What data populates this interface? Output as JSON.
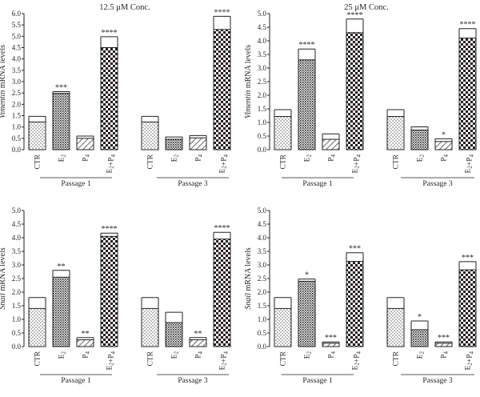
{
  "chart_data": [
    {
      "type": "bar",
      "title": "12.5 μM Conc.",
      "ylabel_italic": "Vimentin",
      "ylabel_rest": " mRNA levels",
      "ylim": [
        0,
        6.0
      ],
      "yticks": [
        "0.0",
        "0.5",
        "1.0",
        "1.5",
        "2.0",
        "2.5",
        "3.0",
        "3.5",
        "4.0",
        "4.5",
        "5.0",
        "5.5",
        "6.0"
      ],
      "groups": [
        {
          "label": "Passage 1",
          "bars": [
            {
              "category": "CTR",
              "pattern": "dots",
              "value": 1.22,
              "error": 0.25,
              "sig": ""
            },
            {
              "category": "E2",
              "pattern": "dense",
              "value": 2.48,
              "error": 0.08,
              "sig": "***"
            },
            {
              "category": "P4",
              "pattern": "hatch",
              "value": 0.5,
              "error": 0.1,
              "sig": ""
            },
            {
              "category": "E2+P4",
              "pattern": "checker",
              "value": 4.5,
              "error": 0.48,
              "sig": "****"
            }
          ]
        },
        {
          "label": "Passage 3",
          "bars": [
            {
              "category": "CTR",
              "pattern": "dots",
              "value": 1.22,
              "error": 0.25,
              "sig": ""
            },
            {
              "category": "E2",
              "pattern": "dense",
              "value": 0.46,
              "error": 0.1,
              "sig": ""
            },
            {
              "category": "P4",
              "pattern": "hatch",
              "value": 0.52,
              "error": 0.1,
              "sig": ""
            },
            {
              "category": "E2+P4",
              "pattern": "checker",
              "value": 5.3,
              "error": 0.58,
              "sig": "****"
            }
          ]
        }
      ]
    },
    {
      "type": "bar",
      "title": "25 μM Conc.",
      "ylabel_italic": "Vimentin",
      "ylabel_rest": " mRNA levels",
      "ylim": [
        0,
        5.0
      ],
      "yticks": [
        "0.0",
        "0.5",
        "1.0",
        "1.5",
        "2.0",
        "2.5",
        "3.0",
        "3.5",
        "4.0",
        "4.5",
        "5.0"
      ],
      "groups": [
        {
          "label": "Passage 1",
          "bars": [
            {
              "category": "CTR",
              "pattern": "dots",
              "value": 1.22,
              "error": 0.25,
              "sig": ""
            },
            {
              "category": "E2",
              "pattern": "dense",
              "value": 3.3,
              "error": 0.4,
              "sig": "****"
            },
            {
              "category": "P4",
              "pattern": "hatch",
              "value": 0.38,
              "error": 0.2,
              "sig": ""
            },
            {
              "category": "E2+P4",
              "pattern": "checker",
              "value": 4.3,
              "error": 0.5,
              "sig": "****"
            }
          ]
        },
        {
          "label": "Passage 3",
          "bars": [
            {
              "category": "CTR",
              "pattern": "dots",
              "value": 1.22,
              "error": 0.25,
              "sig": ""
            },
            {
              "category": "E2",
              "pattern": "dense",
              "value": 0.72,
              "error": 0.12,
              "sig": ""
            },
            {
              "category": "P4",
              "pattern": "hatch",
              "value": 0.3,
              "error": 0.1,
              "sig": "*"
            },
            {
              "category": "E2+P4",
              "pattern": "checker",
              "value": 4.1,
              "error": 0.35,
              "sig": "****"
            }
          ]
        }
      ]
    },
    {
      "type": "bar",
      "title": "",
      "ylabel_italic": "Snail",
      "ylabel_rest": " mRNA levels",
      "ylim": [
        0,
        5.0
      ],
      "yticks": [
        "0.0",
        "0.5",
        "1.0",
        "1.5",
        "2.0",
        "2.5",
        "3.0",
        "3.5",
        "4.0",
        "4.5",
        "5.0"
      ],
      "groups": [
        {
          "label": "Passage 1",
          "bars": [
            {
              "category": "CTR",
              "pattern": "dots",
              "value": 1.4,
              "error": 0.4,
              "sig": ""
            },
            {
              "category": "E2",
              "pattern": "dense",
              "value": 2.55,
              "error": 0.25,
              "sig": "**"
            },
            {
              "category": "P4",
              "pattern": "hatch",
              "value": 0.25,
              "error": 0.08,
              "sig": "**"
            },
            {
              "category": "E2+P4",
              "pattern": "checker",
              "value": 4.05,
              "error": 0.12,
              "sig": "****"
            }
          ]
        },
        {
          "label": "Passage 3",
          "bars": [
            {
              "category": "CTR",
              "pattern": "dots",
              "value": 1.4,
              "error": 0.4,
              "sig": ""
            },
            {
              "category": "E2",
              "pattern": "dense",
              "value": 0.88,
              "error": 0.38,
              "sig": ""
            },
            {
              "category": "P4",
              "pattern": "hatch",
              "value": 0.25,
              "error": 0.08,
              "sig": "**"
            },
            {
              "category": "E2+P4",
              "pattern": "checker",
              "value": 3.95,
              "error": 0.25,
              "sig": "****"
            }
          ]
        }
      ]
    },
    {
      "type": "bar",
      "title": "",
      "ylabel_italic": "Snail",
      "ylabel_rest": " mRNA levels",
      "ylim": [
        0,
        5.0
      ],
      "yticks": [
        "0.0",
        "0.5",
        "1.0",
        "1.5",
        "2.0",
        "2.5",
        "3.0",
        "3.5",
        "4.0",
        "4.5",
        "5.0"
      ],
      "groups": [
        {
          "label": "Passage 1",
          "bars": [
            {
              "category": "CTR",
              "pattern": "dots",
              "value": 1.4,
              "error": 0.4,
              "sig": ""
            },
            {
              "category": "E2",
              "pattern": "dense",
              "value": 2.4,
              "error": 0.08,
              "sig": "*"
            },
            {
              "category": "P4",
              "pattern": "hatch",
              "value": 0.12,
              "error": 0.05,
              "sig": "***"
            },
            {
              "category": "E2+P4",
              "pattern": "checker",
              "value": 3.13,
              "error": 0.32,
              "sig": "***"
            }
          ]
        },
        {
          "label": "Passage 3",
          "bars": [
            {
              "category": "CTR",
              "pattern": "dots",
              "value": 1.4,
              "error": 0.4,
              "sig": ""
            },
            {
              "category": "E2",
              "pattern": "dense",
              "value": 0.62,
              "error": 0.32,
              "sig": "*"
            },
            {
              "category": "P4",
              "pattern": "hatch",
              "value": 0.12,
              "error": 0.05,
              "sig": "***"
            },
            {
              "category": "E2+P4",
              "pattern": "checker",
              "value": 2.82,
              "error": 0.3,
              "sig": "***"
            }
          ]
        }
      ]
    }
  ],
  "labels": {
    "ctr": "CTR",
    "e_base": "E",
    "p_base": "P",
    "e_sub": "2",
    "p_sub": "4",
    "plus": "+"
  }
}
